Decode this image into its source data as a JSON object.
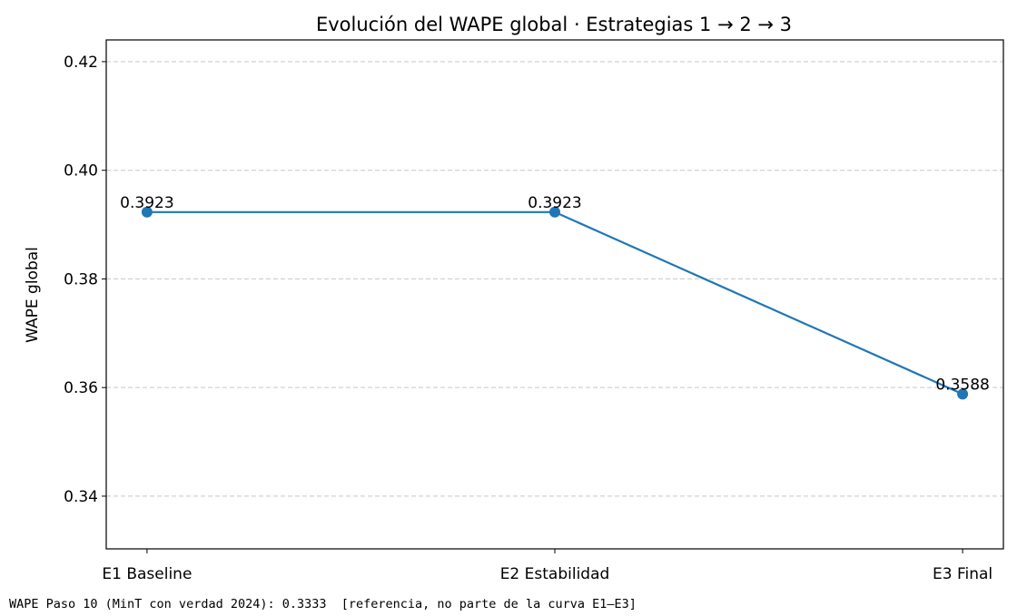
{
  "chart_data": {
    "type": "line",
    "title": "Evolución del WAPE global · Estrategias 1 → 2 → 3",
    "xlabel": "",
    "ylabel": "WAPE global",
    "categories": [
      "E1 Baseline",
      "E2 Estabilidad",
      "E3 Final"
    ],
    "series": [
      {
        "name": "WAPE global",
        "values": [
          0.3923,
          0.3923,
          0.3588
        ],
        "labels": [
          "0.3923",
          "0.3923",
          "0.3588"
        ],
        "color": "#1f77b4"
      }
    ],
    "ylim": [
      0.3303,
      0.424
    ],
    "xlim": [
      -0.1,
      2.1
    ],
    "yticks": [
      0.34,
      0.36,
      0.38,
      0.4,
      0.42
    ],
    "ytick_labels": [
      "0.34",
      "0.36",
      "0.38",
      "0.40",
      "0.42"
    ],
    "grid": "y-dashed",
    "legend": "none"
  },
  "footer": "WAPE Paso 10 (MinT con verdad 2024): 0.3333  [referencia, no parte de la curva E1–E3]"
}
